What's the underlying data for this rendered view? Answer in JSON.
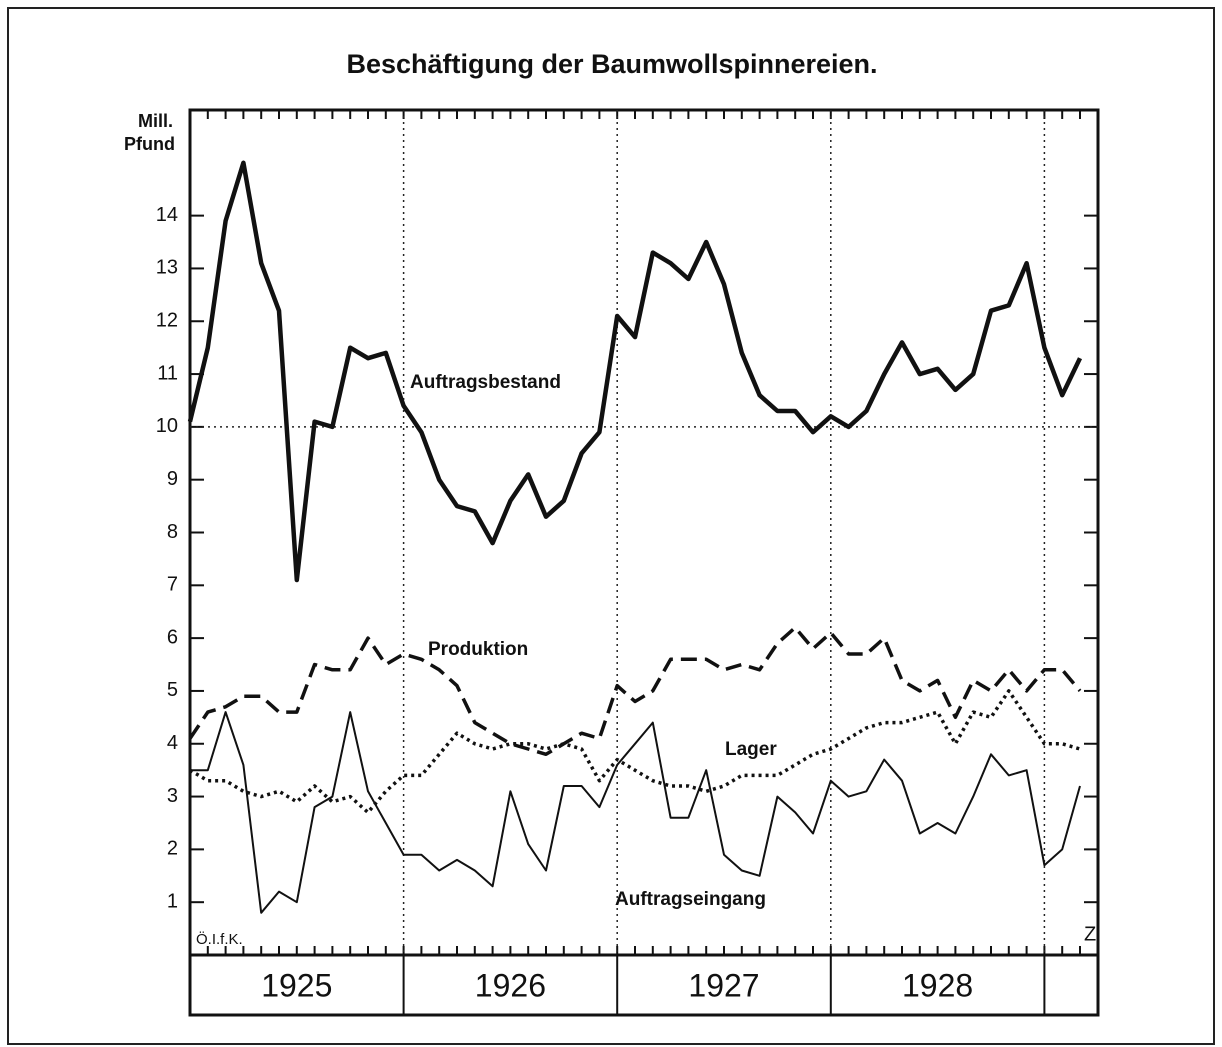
{
  "chart_data": {
    "type": "line",
    "title": "Beschäftigung der Baumwollspinnereien.",
    "y_label": [
      "Mill.",
      "Pfund"
    ],
    "annotations": [
      "Ö.I.f.K.",
      "Z"
    ],
    "x_group_labels": [
      "1925",
      "1926",
      "1927",
      "1928"
    ],
    "categories": [
      null,
      null,
      null,
      null,
      null,
      null,
      null,
      null,
      null,
      null,
      null,
      null,
      null,
      null,
      null,
      null,
      null,
      null,
      null,
      null,
      null,
      null,
      null,
      null,
      null,
      null,
      null,
      null,
      null,
      null,
      null,
      null,
      null,
      null,
      null,
      null,
      null,
      null,
      null,
      null,
      null,
      null,
      null,
      null,
      null,
      null,
      null,
      null,
      null,
      null,
      null
    ],
    "ylim": [
      0,
      16
    ],
    "yticks": [
      1,
      2,
      3,
      4,
      5,
      6,
      7,
      8,
      9,
      10,
      11,
      12,
      13,
      14
    ],
    "grid": true,
    "series": [
      {
        "name": "Auftragsbestand",
        "color": "#111111",
        "linestyle": "solid",
        "linewidth": 4.5,
        "values": [
          10.1,
          11.5,
          13.9,
          15.0,
          13.1,
          12.2,
          7.1,
          10.1,
          10.0,
          11.5,
          11.3,
          11.4,
          10.4,
          9.9,
          9.0,
          8.5,
          8.4,
          7.8,
          8.6,
          9.1,
          8.3,
          8.6,
          9.5,
          9.9,
          12.1,
          11.7,
          13.3,
          13.1,
          12.8,
          13.5,
          12.7,
          11.4,
          10.6,
          10.3,
          10.3,
          9.9,
          10.2,
          10.0,
          10.3,
          11.0,
          11.6,
          11.0,
          11.1,
          10.7,
          11.0,
          12.2,
          12.3,
          13.1,
          11.5,
          10.6,
          11.3
        ]
      },
      {
        "name": "Produktion",
        "color": "#111111",
        "linestyle": "dashed",
        "linewidth": 3.5,
        "values": [
          4.1,
          4.6,
          4.7,
          4.9,
          4.9,
          4.6,
          4.6,
          5.5,
          5.4,
          5.4,
          6.0,
          5.5,
          5.7,
          5.6,
          5.4,
          5.1,
          4.4,
          4.2,
          4.0,
          3.9,
          3.8,
          4.0,
          4.2,
          4.1,
          5.1,
          4.8,
          5.0,
          5.6,
          5.6,
          5.6,
          5.4,
          5.5,
          5.4,
          5.9,
          6.2,
          5.8,
          6.1,
          5.7,
          5.7,
          6.0,
          5.2,
          5.0,
          5.2,
          4.5,
          5.2,
          5.0,
          5.4,
          5.0,
          5.4,
          5.4,
          5.0
        ]
      },
      {
        "name": "Lager",
        "color": "#111111",
        "linestyle": "dotted",
        "linewidth": 3.5,
        "values": [
          3.5,
          3.3,
          3.3,
          3.1,
          3.0,
          3.1,
          2.9,
          3.2,
          2.9,
          3.0,
          2.7,
          3.1,
          3.4,
          3.4,
          3.8,
          4.2,
          4.0,
          3.9,
          4.0,
          4.0,
          3.9,
          4.0,
          3.9,
          3.3,
          3.7,
          3.5,
          3.3,
          3.2,
          3.2,
          3.1,
          3.2,
          3.4,
          3.4,
          3.4,
          3.6,
          3.8,
          3.9,
          4.1,
          4.3,
          4.4,
          4.4,
          4.5,
          4.6,
          4.0,
          4.6,
          4.5,
          5.0,
          4.5,
          4.0,
          4.0,
          3.9
        ]
      },
      {
        "name": "Auftragseingang",
        "color": "#111111",
        "linestyle": "solid",
        "linewidth": 2,
        "values": [
          3.5,
          3.5,
          4.6,
          3.6,
          0.8,
          1.2,
          1.0,
          2.8,
          3.0,
          4.6,
          3.1,
          2.5,
          1.9,
          1.9,
          1.6,
          1.8,
          1.6,
          1.3,
          3.1,
          2.1,
          1.6,
          3.2,
          3.2,
          2.8,
          3.6,
          4.0,
          4.4,
          2.6,
          2.6,
          3.5,
          1.9,
          1.6,
          1.5,
          3.0,
          2.7,
          2.3,
          3.3,
          3.0,
          3.1,
          3.7,
          3.3,
          2.3,
          2.5,
          2.3,
          3.0,
          3.8,
          3.4,
          3.5,
          1.7,
          2.0,
          3.2
        ]
      }
    ]
  }
}
